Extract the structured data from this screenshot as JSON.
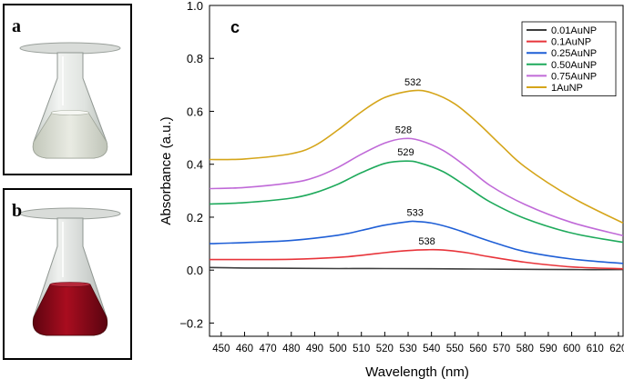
{
  "panels": {
    "a": {
      "label": "a"
    },
    "b": {
      "label": "b"
    },
    "c": {
      "label": "c"
    }
  },
  "chart_data": {
    "type": "line",
    "xlabel": "Wavelength (nm)",
    "ylabel": "Absorbance (a.u.)",
    "xlim": [
      445,
      622
    ],
    "ylim": [
      -0.25,
      1.0
    ],
    "xticks": [
      450,
      460,
      470,
      480,
      490,
      500,
      510,
      520,
      530,
      540,
      550,
      560,
      570,
      580,
      590,
      600,
      610,
      620
    ],
    "yticks": [
      -0.2,
      0.0,
      0.2,
      0.4,
      0.6,
      0.8,
      1.0
    ],
    "ytick_labels": [
      "−0.2",
      "0.0",
      "0.2",
      "0.4",
      "0.6",
      "0.8",
      "1.0"
    ],
    "legend_position": "top-right",
    "series": [
      {
        "name": "0.01AuNP",
        "color": "#3d3d3d",
        "peak_label": "",
        "x": [
          445,
          460,
          480,
          500,
          520,
          540,
          560,
          580,
          600,
          622
        ],
        "y": [
          0.01,
          0.008,
          0.007,
          0.006,
          0.006,
          0.005,
          0.004,
          0.003,
          0.002,
          0.002
        ]
      },
      {
        "name": "0.1AuNP",
        "color": "#e8343a",
        "peak_label": "538",
        "x": [
          445,
          460,
          480,
          500,
          510,
          520,
          530,
          538,
          545,
          555,
          565,
          580,
          600,
          622
        ],
        "y": [
          0.04,
          0.04,
          0.041,
          0.048,
          0.056,
          0.066,
          0.074,
          0.077,
          0.076,
          0.066,
          0.05,
          0.03,
          0.012,
          0.005
        ]
      },
      {
        "name": "0.25AuNP",
        "color": "#1f5fd6",
        "peak_label": "533",
        "x": [
          445,
          460,
          480,
          500,
          510,
          520,
          530,
          533,
          540,
          550,
          560,
          570,
          580,
          600,
          622
        ],
        "y": [
          0.1,
          0.104,
          0.112,
          0.132,
          0.15,
          0.17,
          0.183,
          0.184,
          0.178,
          0.155,
          0.124,
          0.095,
          0.07,
          0.042,
          0.025
        ]
      },
      {
        "name": "0.50AuNP",
        "color": "#1faa5c",
        "peak_label": "529",
        "x": [
          445,
          460,
          480,
          490,
          500,
          510,
          520,
          529,
          535,
          545,
          555,
          565,
          580,
          600,
          622
        ],
        "y": [
          0.25,
          0.255,
          0.272,
          0.292,
          0.325,
          0.368,
          0.403,
          0.412,
          0.405,
          0.372,
          0.316,
          0.258,
          0.195,
          0.14,
          0.105
        ]
      },
      {
        "name": "0.75AuNP",
        "color": "#c06ad8",
        "peak_label": "528",
        "x": [
          445,
          460,
          480,
          490,
          500,
          510,
          520,
          528,
          535,
          545,
          555,
          565,
          580,
          600,
          622
        ],
        "y": [
          0.308,
          0.312,
          0.33,
          0.35,
          0.388,
          0.438,
          0.48,
          0.497,
          0.49,
          0.452,
          0.39,
          0.32,
          0.248,
          0.18,
          0.13
        ]
      },
      {
        "name": "1AuNP",
        "color": "#d5a51a",
        "peak_label": "532",
        "x": [
          445,
          460,
          480,
          490,
          500,
          510,
          520,
          532,
          540,
          550,
          560,
          570,
          580,
          600,
          622
        ],
        "y": [
          0.418,
          0.42,
          0.44,
          0.47,
          0.53,
          0.598,
          0.652,
          0.678,
          0.67,
          0.628,
          0.555,
          0.47,
          0.39,
          0.275,
          0.178
        ]
      }
    ]
  }
}
